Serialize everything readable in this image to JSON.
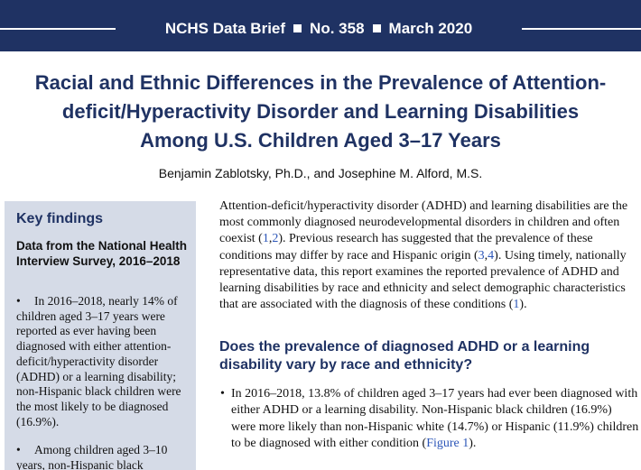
{
  "header": {
    "series": "NCHS Data Brief",
    "number": "No. 358",
    "date": "March 2020"
  },
  "title": "Racial and Ethnic Differences in the Prevalence of Attention-deficit/Hyperactivity Disorder and Learning Disabilities Among U.S. Children Aged 3–17 Years",
  "authors": "Benjamin Zablotsky, Ph.D., and Josephine M. Alford, M.S.",
  "key_findings": {
    "heading": "Key findings",
    "subheading": "Data from the National Health Interview Survey, 2016–2018",
    "bullet_char": "•",
    "bullets": [
      "In 2016–2018, nearly 14% of children aged 3–17 years were reported as ever having been diagnosed with either attention-deficit/hyperactivity disorder (ADHD) or a learning disability; non-Hispanic black children were the most likely to be diagnosed (16.9%).",
      "Among children aged 3–10 years, non-Hispanic black"
    ]
  },
  "intro": {
    "p1": "Attention-deficit/hyperactivity disorder (ADHD) and learning disabilities are the most commonly diagnosed neurodevelopmental disorders in children and often coexist (",
    "ref_a": "1",
    "sep1": ",",
    "ref_b": "2",
    "p2": "). Previous research has suggested that the prevalence of these conditions may differ by race and Hispanic origin (",
    "ref_c": "3",
    "sep2": ",",
    "ref_d": "4",
    "p3": "). Using timely, nationally representative data, this report examines the reported prevalence of ADHD and learning disabilities by race and ethnicity and select demographic characteristics that are associated with the diagnosis of these conditions (",
    "ref_e": "1",
    "p4": ")."
  },
  "section": {
    "question": "Does the prevalence of diagnosed ADHD or a learning disability vary by race and ethnicity?",
    "bullet_char": "•",
    "bullet_text": "In 2016–2018, 13.8% of children aged 3–17 years had ever been diagnosed with either ADHD or a learning disability. Non-Hispanic black children (16.9%) were more likely than non-Hispanic white (14.7%) or Hispanic (11.9%) children to be diagnosed with either condition (",
    "figure_link": "Figure 1",
    "bullet_end": ")."
  },
  "colors": {
    "navy": "#1f3263",
    "sidebar_bg": "#d5dbe7",
    "link": "#2c56b8"
  }
}
